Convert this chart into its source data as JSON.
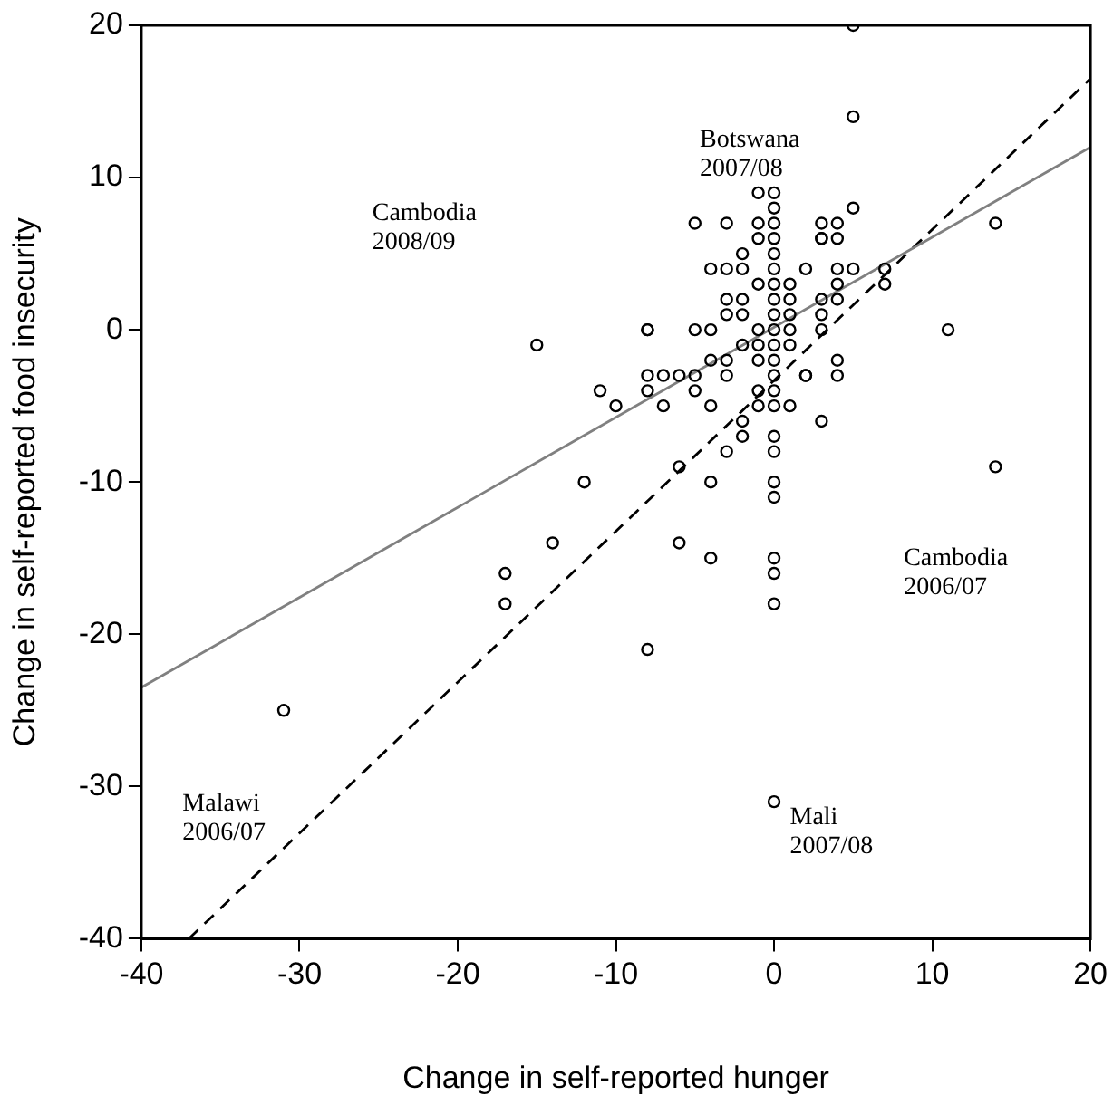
{
  "chart_data": {
    "type": "scatter",
    "xlabel": "Change in self-reported hunger",
    "ylabel": "Change in self-reported food insecurity",
    "xlim": [
      -40,
      20
    ],
    "xticks": [
      -40,
      -30,
      -20,
      -10,
      0,
      10,
      20
    ],
    "ylim": [
      -40,
      20
    ],
    "yticks": [
      -40,
      -30,
      -20,
      -10,
      0,
      10,
      20
    ],
    "grid": false,
    "legend": false,
    "annotations": [
      {
        "text": "Botswana\n2007/08",
        "x": 5,
        "y": 14
      },
      "Cambodia\n2008/09",
      "Cambodia\n2006/07",
      "Malawi\n2006/07",
      {
        "text": "Mali\n2007/08",
        "x": 0,
        "y": -31
      }
    ],
    "series": [
      {
        "marker": "circle",
        "color": "#000000",
        "x": [
          5,
          5,
          -15,
          -11,
          -8,
          -5,
          -4,
          -5,
          -3,
          -1,
          0,
          3,
          4,
          5,
          0,
          -1,
          0,
          -1,
          0,
          3,
          -2,
          0,
          -4,
          -3,
          -2,
          0,
          2,
          4,
          5,
          -1,
          0,
          1,
          4,
          7,
          -3,
          -2,
          0,
          1,
          3,
          4,
          -3,
          -2,
          0,
          1,
          3,
          -8,
          -1,
          0,
          1,
          3,
          -2,
          -1,
          0,
          1,
          -4,
          -3,
          -1,
          0,
          4,
          -8,
          -7,
          -6,
          -5,
          -3,
          0,
          2,
          4,
          -8,
          -5,
          -1,
          0,
          -10,
          -7,
          -4,
          -1,
          0,
          1,
          3,
          -2,
          -2,
          0,
          0,
          -3,
          -6,
          -12,
          -4,
          0,
          0,
          -14,
          -6,
          -4,
          0,
          0,
          -17,
          -17,
          0,
          -8,
          -31,
          3,
          4,
          14,
          11,
          14,
          0,
          7,
          2
        ],
        "values": [
          20,
          14,
          -1,
          -4,
          0,
          0,
          0,
          7,
          7,
          7,
          7,
          7,
          7,
          8,
          8,
          9,
          9,
          6,
          6,
          6,
          5,
          5,
          4,
          4,
          4,
          4,
          4,
          4,
          4,
          3,
          3,
          3,
          3,
          3,
          2,
          2,
          2,
          2,
          2,
          2,
          1,
          1,
          1,
          1,
          1,
          0,
          0,
          0,
          0,
          0,
          -1,
          -1,
          -1,
          -1,
          -2,
          -2,
          -2,
          -2,
          -2,
          -3,
          -3,
          -3,
          -3,
          -3,
          -3,
          -3,
          -3,
          -4,
          -4,
          -4,
          -4,
          -5,
          -5,
          -5,
          -5,
          -5,
          -5,
          -6,
          -6,
          -7,
          -7,
          -8,
          -8,
          -9,
          -10,
          -10,
          -10,
          -11,
          -14,
          -14,
          -15,
          -15,
          -16,
          -16,
          -18,
          -18,
          -21,
          -25,
          6,
          6,
          7,
          0,
          -9,
          -31,
          4,
          -3
        ]
      },
      {
        "type": "line",
        "marker": "none",
        "color": "#808080",
        "line_style": "solid",
        "x": [
          -40,
          20
        ],
        "values": [
          -23.5,
          12
        ]
      },
      {
        "type": "line",
        "marker": "none",
        "color": "#000000",
        "line_style": "dashed",
        "x": [
          -37,
          20
        ],
        "values": [
          -40,
          16.5
        ]
      }
    ]
  }
}
